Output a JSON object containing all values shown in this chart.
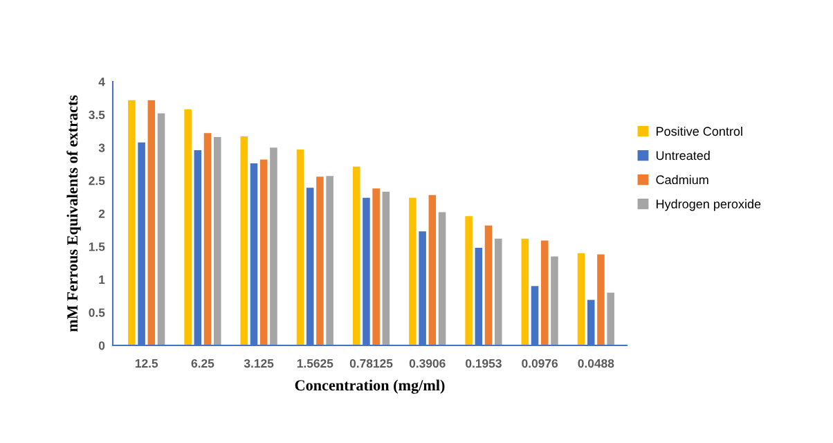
{
  "chart_data": {
    "type": "bar",
    "xlabel": "Concentration (mg/ml)",
    "ylabel": "mM Ferrous Equivalents of extracts",
    "categories": [
      "12.5",
      "6.25",
      "3.125",
      "1.5625",
      "0.78125",
      "0.3906",
      "0.1953",
      "0.0976",
      "0.0488"
    ],
    "series": [
      {
        "name": "Positive Control",
        "color": "#ffc000",
        "values": [
          3.72,
          3.58,
          3.17,
          2.97,
          2.71,
          2.24,
          1.96,
          1.62,
          1.4
        ]
      },
      {
        "name": "Untreated",
        "color": "#4472c4",
        "values": [
          3.08,
          2.96,
          2.76,
          2.39,
          2.24,
          1.73,
          1.48,
          0.9,
          0.69
        ]
      },
      {
        "name": "Cadmium",
        "color": "#ed7d31",
        "values": [
          3.72,
          3.22,
          2.82,
          2.56,
          2.38,
          2.28,
          1.82,
          1.59,
          1.38
        ]
      },
      {
        "name": "Hydrogen peroxide",
        "color": "#a5a5a5",
        "values": [
          3.52,
          3.16,
          3.0,
          2.57,
          2.33,
          2.02,
          1.62,
          1.35,
          0.8
        ]
      }
    ],
    "ylim": [
      0,
      4
    ],
    "yticks": [
      0,
      0.5,
      1,
      1.5,
      2,
      2.5,
      3,
      3.5,
      4
    ],
    "grid": false,
    "legend": "right"
  }
}
